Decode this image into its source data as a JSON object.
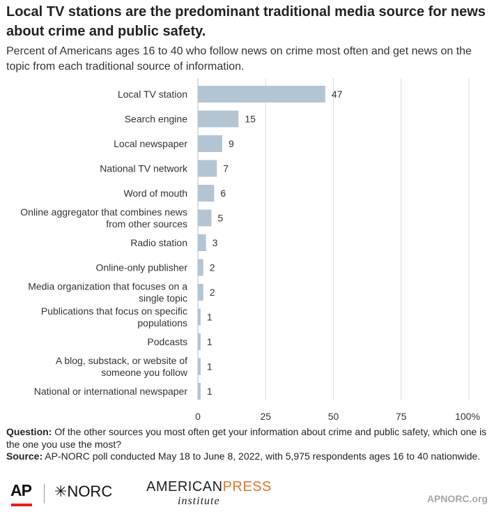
{
  "title": "Local TV stations are the predominant traditional media source for news about crime and public safety.",
  "subtitle": "Percent of Americans ages 16 to 40 who follow news on crime most often and get news on the topic from each traditional source of information.",
  "chart_data": {
    "type": "bar",
    "orientation": "horizontal",
    "categories": [
      [
        "Local TV station"
      ],
      [
        "Search engine"
      ],
      [
        "Local newspaper"
      ],
      [
        "National TV network"
      ],
      [
        "Word of mouth"
      ],
      [
        "Online aggregator that combines news",
        "from other sources"
      ],
      [
        "Radio station"
      ],
      [
        "Online-only publisher"
      ],
      [
        "Media organization that focuses on a",
        "single topic"
      ],
      [
        "Publications that focus on specific",
        "populations"
      ],
      [
        "Podcasts"
      ],
      [
        "A blog, substack, or website of",
        "someone you follow"
      ],
      [
        "National or international newspaper"
      ]
    ],
    "values": [
      47,
      15,
      9,
      7,
      6,
      5,
      3,
      2,
      2,
      1,
      1,
      1,
      1
    ],
    "xlim": [
      0,
      100
    ],
    "x_ticks": [
      "0",
      "25",
      "50",
      "75",
      "100%"
    ],
    "x_tick_values": [
      0,
      25,
      50,
      75,
      100
    ],
    "grid": true,
    "bar_color": "#b3c5d3",
    "grid_color": "#dddddd"
  },
  "notes": {
    "question_label": "Question:",
    "question_text": " Of the other sources you most often get your information about crime and public safety, which one is the one you use the most?",
    "source_label": "Source:",
    "source_text": " AP-NORC poll conducted May 18 to June 8, 2022, with 5,975 respondents ages 16 to 40 nationwide."
  },
  "footer": {
    "ap_logo": "AP",
    "norc_logo": "✳NORC",
    "api_logo_top_1": "AMERICAN",
    "api_logo_top_2": "PRESS",
    "api_logo_bottom": "institute",
    "site": "APNORC.org"
  }
}
